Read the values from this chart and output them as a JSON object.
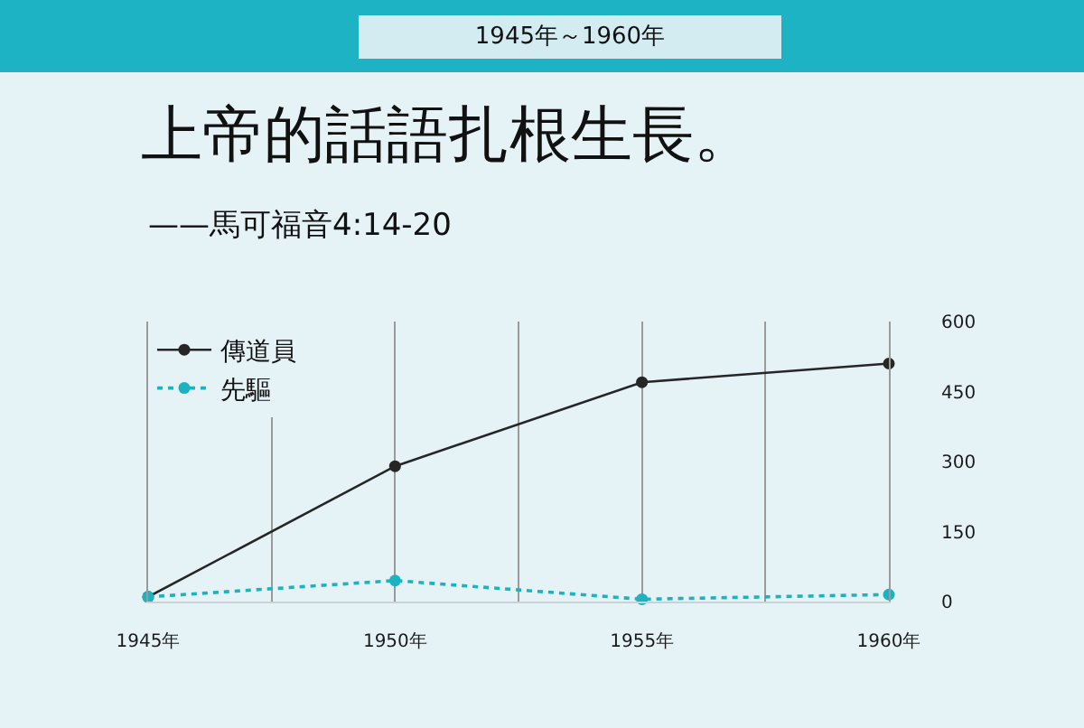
{
  "chart_data": {
    "type": "line",
    "title": "上帝的話語扎根生長。",
    "subtitle": "——馬可福音4:14-20",
    "annotations": [
      "1945年～1960年"
    ],
    "x": [
      1945,
      1950,
      1955,
      1960
    ],
    "series": [
      {
        "name": "傳道員",
        "color": "#262626",
        "values": [
          10,
          290,
          470,
          510
        ],
        "line_style": "solid"
      },
      {
        "name": "先驅",
        "color": "#1cb3c1",
        "values": [
          10,
          45,
          5,
          15
        ],
        "line_style": "dotted"
      }
    ],
    "xlim": [
      1945,
      1960
    ],
    "xticks": [
      {
        "value": 1945,
        "label": "1945年"
      },
      {
        "value": 1947.5,
        "label": null
      },
      {
        "value": 1950,
        "label": "1950年"
      },
      {
        "value": 1952.5,
        "label": null
      },
      {
        "value": 1955,
        "label": "1955年"
      },
      {
        "value": 1957.5,
        "label": null
      },
      {
        "value": 1960,
        "label": "1960年"
      }
    ],
    "ylim": [
      0,
      600
    ],
    "yticks": [
      0,
      150,
      300,
      450,
      600
    ],
    "grid": "x",
    "legend": "top left",
    "marker": "circle"
  }
}
